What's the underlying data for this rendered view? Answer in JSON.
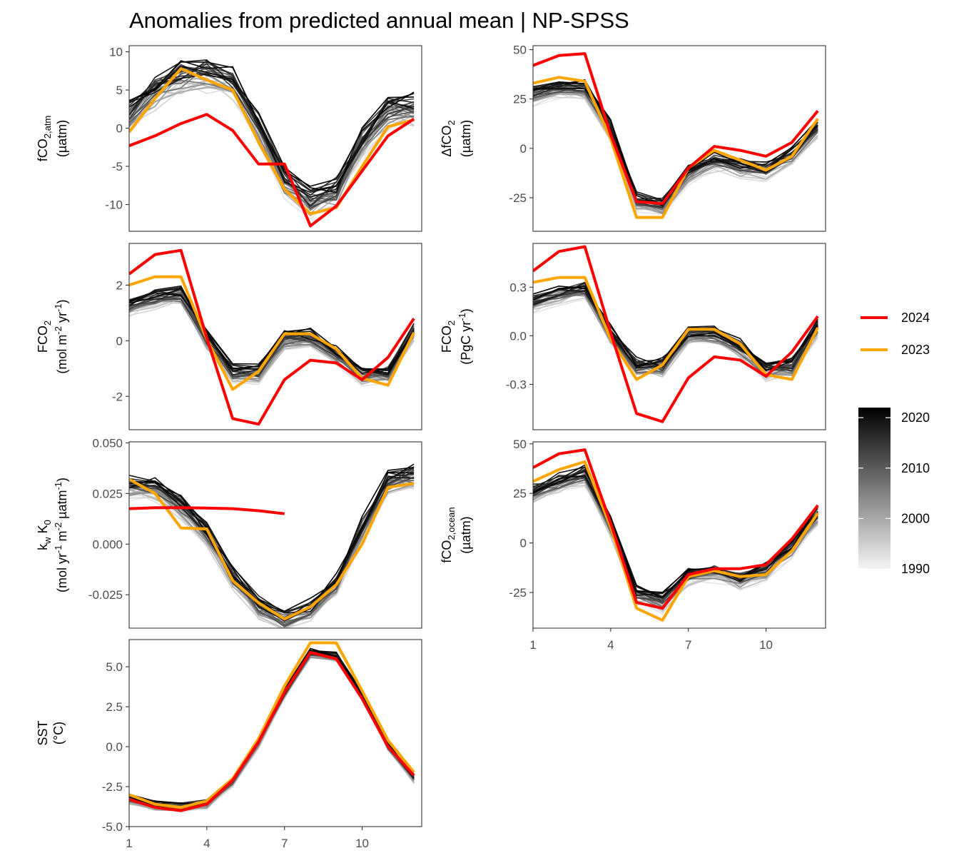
{
  "title": "Anomalies from predicted annual mean | NP-SPSS",
  "chart_data": [
    {
      "type": "line",
      "panel": "fco2-atm",
      "ylabel": "fCO2,atm (µatm)",
      "ylim": [
        -13.5,
        10.8
      ],
      "yticks": [
        "10",
        "5",
        "0",
        "-5",
        "-10"
      ],
      "ytick_values": [
        10,
        5,
        0,
        -5,
        -10
      ],
      "x": [
        1,
        2,
        3,
        4,
        5,
        6,
        7,
        8,
        9,
        10,
        11,
        12
      ],
      "xlim": [
        1,
        12.3
      ],
      "series": [
        {
          "name": "2024",
          "values": [
            -2.3,
            -1.0,
            0.6,
            1.8,
            -0.3,
            -4.7,
            -4.7,
            -12.8,
            -10.2,
            -5.6,
            -1.0,
            1.2
          ]
        },
        {
          "name": "2023",
          "values": [
            -0.5,
            3.9,
            7.8,
            6.3,
            5.0,
            -1.8,
            -8.0,
            -11.2,
            -10.4,
            -5.0,
            0.2,
            1.1
          ]
        }
      ],
      "grey_mean": [
        1.5,
        4.5,
        6.5,
        6.8,
        5.8,
        0.0,
        -7.0,
        -10.0,
        -8.5,
        -2.0,
        2.0,
        2.5
      ],
      "grey_spread": 2.2
    },
    {
      "type": "line",
      "panel": "delta-fco2",
      "ylabel": "ΔfCO2 (µatm)",
      "ylim": [
        -42,
        52
      ],
      "yticks": [
        "50",
        "25",
        "0",
        "-25"
      ],
      "ytick_values": [
        50,
        25,
        0,
        -25
      ],
      "x": [
        1,
        2,
        3,
        4,
        5,
        6,
        7,
        8,
        9,
        10,
        11,
        12
      ],
      "xlim": [
        1,
        12.3
      ],
      "series": [
        {
          "name": "2024",
          "values": [
            42,
            47,
            48,
            7,
            -27,
            -28,
            -10,
            1,
            -1,
            -4,
            3,
            19
          ]
        },
        {
          "name": "2023",
          "values": [
            33,
            36,
            34,
            5,
            -35,
            -35,
            -10,
            -1,
            -6,
            -11,
            -4,
            15
          ]
        }
      ],
      "grey_mean": [
        27,
        30,
        30,
        9,
        -27,
        -30,
        -13,
        -7,
        -10,
        -12,
        -4,
        10
      ],
      "grey_spread": 5
    },
    {
      "type": "line",
      "panel": "fco2-flux",
      "ylabel": "FCO2 (mol m-2 yr-1)",
      "ylim": [
        -3.2,
        3.5
      ],
      "yticks": [
        "2",
        "0",
        "-2"
      ],
      "ytick_values": [
        2,
        0,
        -2
      ],
      "x": [
        1,
        2,
        3,
        4,
        5,
        6,
        7,
        8,
        9,
        10,
        11,
        12
      ],
      "xlim": [
        1,
        12.3
      ],
      "series": [
        {
          "name": "2024",
          "values": [
            2.4,
            3.1,
            3.25,
            0.1,
            -2.8,
            -3.0,
            -1.4,
            -0.7,
            -0.8,
            -1.4,
            -0.6,
            0.8
          ]
        },
        {
          "name": "2023",
          "values": [
            2.0,
            2.3,
            2.3,
            0.05,
            -1.75,
            -1.1,
            0.25,
            0.25,
            -0.3,
            -1.35,
            -1.6,
            0.3
          ]
        }
      ],
      "grey_mean": [
        1.2,
        1.5,
        1.6,
        0.0,
        -1.2,
        -1.2,
        0.0,
        0.05,
        -0.5,
        -1.3,
        -1.2,
        0.3
      ],
      "grey_spread": 0.35
    },
    {
      "type": "line",
      "panel": "fco2-flux-pgc",
      "ylabel": "FCO2 (PgC yr-1)",
      "ylim": [
        -0.58,
        0.57
      ],
      "yticks": [
        "0.3",
        "0.0",
        "-0.3"
      ],
      "ytick_values": [
        0.3,
        0.0,
        -0.3
      ],
      "x": [
        1,
        2,
        3,
        4,
        5,
        6,
        7,
        8,
        9,
        10,
        11,
        12
      ],
      "xlim": [
        1,
        12.3
      ],
      "series": [
        {
          "name": "2024",
          "values": [
            0.4,
            0.52,
            0.55,
            0.02,
            -0.48,
            -0.53,
            -0.26,
            -0.13,
            -0.15,
            -0.25,
            -0.1,
            0.12
          ]
        },
        {
          "name": "2023",
          "values": [
            0.33,
            0.36,
            0.36,
            -0.02,
            -0.27,
            -0.18,
            0.04,
            0.04,
            -0.05,
            -0.24,
            -0.27,
            0.05
          ]
        }
      ],
      "grey_mean": [
        0.2,
        0.25,
        0.28,
        0.0,
        -0.2,
        -0.2,
        0.0,
        0.0,
        -0.08,
        -0.22,
        -0.2,
        0.05
      ],
      "grey_spread": 0.06
    },
    {
      "type": "line",
      "panel": "kw-k0",
      "ylabel": "kw K0 (mol yr-1 m-2 µatm-1)",
      "ylim": [
        -0.0415,
        0.0505
      ],
      "yticks": [
        "0.050",
        "0.025",
        "0.000",
        "-0.025"
      ],
      "ytick_values": [
        0.05,
        0.025,
        0.0,
        -0.025
      ],
      "x": [
        1,
        2,
        3,
        4,
        5,
        6,
        7,
        8,
        9,
        10,
        11,
        12
      ],
      "xlim": [
        1,
        12.3
      ],
      "series": [
        {
          "name": "2024",
          "values": [
            0.0175,
            0.018,
            0.018,
            0.0178,
            0.0175,
            0.0165,
            0.015,
            null,
            null,
            null,
            null,
            null
          ]
        },
        {
          "name": "2023",
          "values": [
            0.032,
            0.025,
            0.008,
            0.0075,
            -0.018,
            -0.029,
            -0.037,
            -0.031,
            -0.02,
            0.0,
            0.028,
            0.03
          ]
        }
      ],
      "grey_mean": [
        0.028,
        0.027,
        0.018,
        0.005,
        -0.017,
        -0.031,
        -0.038,
        -0.033,
        -0.02,
        0.007,
        0.03,
        0.033
      ],
      "grey_spread": 0.006
    },
    {
      "type": "line",
      "panel": "fco2-ocean",
      "ylabel": "fCO2,ocean (µatm)",
      "ylim": [
        -43,
        51
      ],
      "yticks": [
        "50",
        "25",
        "0",
        "-25"
      ],
      "ytick_values": [
        50,
        25,
        0,
        -25
      ],
      "x": [
        1,
        2,
        3,
        4,
        5,
        6,
        7,
        8,
        9,
        10,
        11,
        12
      ],
      "xlim": [
        1,
        12.3
      ],
      "series": [
        {
          "name": "2024",
          "values": [
            38,
            45,
            47,
            10,
            -30,
            -33,
            -16,
            -13,
            -13,
            -11,
            2,
            19
          ]
        },
        {
          "name": "2023",
          "values": [
            31,
            37,
            41,
            8,
            -33,
            -39,
            -17,
            -14,
            -17,
            -16,
            -4,
            15
          ]
        }
      ],
      "grey_mean": [
        25,
        30,
        34,
        8,
        -26,
        -30,
        -17,
        -15,
        -19,
        -14,
        -3,
        14
      ],
      "grey_spread": 5,
      "xticks": [
        "1",
        "4",
        "7",
        "10"
      ],
      "xtick_values": [
        1,
        4,
        7,
        10
      ]
    },
    {
      "type": "line",
      "panel": "sst",
      "ylabel": "SST (°C)",
      "ylim": [
        -5.0,
        6.7
      ],
      "yticks": [
        "5.0",
        "2.5",
        "0.0",
        "-2.5",
        "-5.0"
      ],
      "ytick_values": [
        5.0,
        2.5,
        0.0,
        -2.5,
        -5.0
      ],
      "x": [
        1,
        2,
        3,
        4,
        5,
        6,
        7,
        8,
        9,
        10,
        11,
        12
      ],
      "xlim": [
        1,
        12.3
      ],
      "series": [
        {
          "name": "2024",
          "values": [
            -3.3,
            -3.8,
            -4.0,
            -3.6,
            -2.1,
            0.3,
            3.4,
            5.9,
            5.5,
            3.0,
            0.0,
            -1.8
          ]
        },
        {
          "name": "2023",
          "values": [
            -3.0,
            -3.6,
            -3.8,
            -3.4,
            -2.0,
            0.5,
            3.8,
            6.5,
            6.5,
            3.5,
            0.4,
            -1.6
          ]
        }
      ],
      "grey_mean": [
        -3.3,
        -3.7,
        -3.8,
        -3.6,
        -2.2,
        0.2,
        3.3,
        5.8,
        5.6,
        3.2,
        0.0,
        -2.0
      ],
      "grey_spread": 0.3,
      "xticks": [
        "1",
        "4",
        "7",
        "10"
      ],
      "xtick_values": [
        1,
        4,
        7,
        10
      ]
    }
  ],
  "legend": {
    "lines": [
      {
        "label": "2024",
        "color": "#ff0000"
      },
      {
        "label": "2023",
        "color": "#ffa500"
      }
    ],
    "colorbar": {
      "labels": [
        "2020",
        "2010",
        "2000",
        "1990"
      ],
      "values": [
        2020,
        2010,
        2000,
        1990
      ],
      "range": [
        1990,
        2022
      ]
    }
  },
  "colors": {
    "y2024": "#ff0000",
    "y2023": "#ffa500",
    "background": "#ffffff"
  }
}
